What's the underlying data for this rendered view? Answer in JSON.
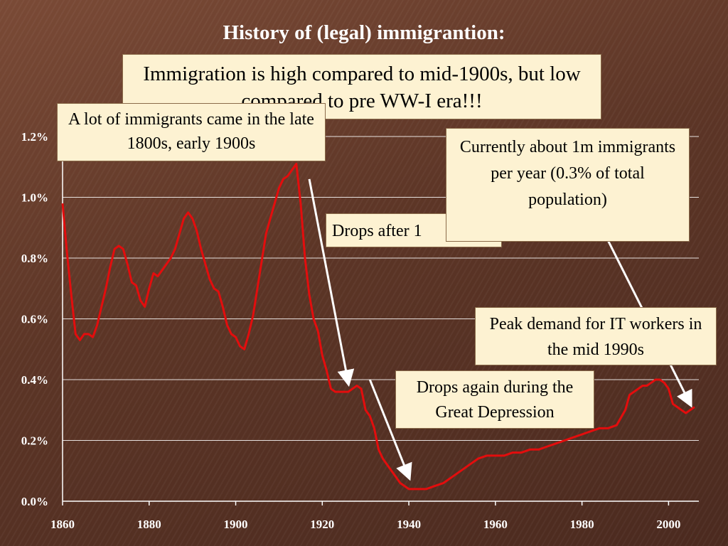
{
  "slide": {
    "title": "History of (legal) immigrantion:"
  },
  "callouts": {
    "main": "Immigration is high compared to mid-1900s, but low compared to pre WW-I era!!!",
    "late1800s": "A lot of immigrants came in the late 1800s, early 1900s",
    "drops_after": "Drops after 1",
    "currently": "Currently about 1m immigrants per year (0.3% of total population)",
    "peak_it": "Peak demand for IT workers in the mid 1990s",
    "depression": "Drops again during the Great Depression"
  },
  "colors": {
    "line": "#e30d0d",
    "arrow": "#ffffff",
    "grid": "#ffffff",
    "callout_bg": "#fdf2d2"
  },
  "chart_data": {
    "type": "line",
    "title": "",
    "xlabel": "",
    "ylabel": "",
    "xlim": [
      1860,
      2007
    ],
    "ylim": [
      0,
      1.2
    ],
    "x_ticks": [
      1860,
      1880,
      1900,
      1920,
      1940,
      1960,
      1980,
      2000
    ],
    "x_tick_labels": [
      "1860",
      "1880",
      "1900",
      "1920",
      "1940",
      "1960",
      "1980",
      "2000"
    ],
    "y_ticks": [
      0,
      0.2,
      0.4,
      0.6,
      0.8,
      1.0,
      1.2
    ],
    "y_tick_labels": [
      "0.0%",
      "0.2%",
      "0.4%",
      "0.6%",
      "0.8%",
      "1.0%",
      "1.2%"
    ],
    "grid": true,
    "series": [
      {
        "name": "",
        "x": [
          1860,
          1861,
          1862,
          1863,
          1864,
          1865,
          1866,
          1867,
          1868,
          1869,
          1870,
          1871,
          1872,
          1873,
          1874,
          1875,
          1876,
          1877,
          1878,
          1879,
          1880,
          1881,
          1882,
          1883,
          1884,
          1885,
          1886,
          1887,
          1888,
          1889,
          1890,
          1891,
          1892,
          1893,
          1894,
          1895,
          1896,
          1897,
          1898,
          1899,
          1900,
          1901,
          1902,
          1903,
          1904,
          1905,
          1906,
          1907,
          1908,
          1909,
          1910,
          1911,
          1912,
          1913,
          1914,
          1915,
          1916,
          1917,
          1918,
          1919,
          1920,
          1921,
          1922,
          1923,
          1924,
          1925,
          1926,
          1927,
          1928,
          1929,
          1930,
          1931,
          1932,
          1933,
          1934,
          1935,
          1936,
          1937,
          1938,
          1939,
          1940,
          1942,
          1944,
          1946,
          1948,
          1950,
          1952,
          1954,
          1956,
          1958,
          1960,
          1962,
          1964,
          1966,
          1968,
          1970,
          1972,
          1974,
          1976,
          1978,
          1980,
          1982,
          1984,
          1986,
          1988,
          1990,
          1991,
          1992,
          1993,
          1994,
          1995,
          1996,
          1997,
          1998,
          1999,
          2000,
          2001,
          2002,
          2003,
          2004,
          2005,
          2006
        ],
        "values": [
          0.98,
          0.82,
          0.68,
          0.55,
          0.53,
          0.55,
          0.55,
          0.54,
          0.58,
          0.64,
          0.7,
          0.77,
          0.83,
          0.84,
          0.83,
          0.78,
          0.72,
          0.71,
          0.66,
          0.64,
          0.7,
          0.75,
          0.74,
          0.76,
          0.78,
          0.8,
          0.83,
          0.88,
          0.93,
          0.95,
          0.93,
          0.89,
          0.83,
          0.78,
          0.73,
          0.7,
          0.69,
          0.64,
          0.58,
          0.55,
          0.54,
          0.51,
          0.5,
          0.55,
          0.61,
          0.7,
          0.79,
          0.88,
          0.93,
          0.98,
          1.03,
          1.06,
          1.07,
          1.09,
          1.11,
          0.98,
          0.8,
          0.68,
          0.6,
          0.56,
          0.48,
          0.43,
          0.37,
          0.36,
          0.36,
          0.36,
          0.36,
          0.37,
          0.38,
          0.37,
          0.3,
          0.28,
          0.24,
          0.17,
          0.14,
          0.12,
          0.1,
          0.08,
          0.06,
          0.05,
          0.04,
          0.04,
          0.04,
          0.05,
          0.06,
          0.08,
          0.1,
          0.12,
          0.14,
          0.15,
          0.15,
          0.15,
          0.16,
          0.16,
          0.17,
          0.17,
          0.18,
          0.19,
          0.2,
          0.21,
          0.22,
          0.23,
          0.24,
          0.24,
          0.25,
          0.3,
          0.35,
          0.36,
          0.37,
          0.38,
          0.38,
          0.39,
          0.4,
          0.4,
          0.39,
          0.37,
          0.32,
          0.31,
          0.3,
          0.29,
          0.3,
          0.31
        ]
      }
    ],
    "arrows": [
      {
        "from": [
          1917,
          1.06
        ],
        "to": [
          1926,
          0.39
        ]
      },
      {
        "from": [
          1931,
          0.4
        ],
        "to": [
          1940,
          0.08
        ]
      },
      {
        "from": [
          1981,
          1.0
        ],
        "to": [
          2005,
          0.32
        ]
      }
    ]
  }
}
